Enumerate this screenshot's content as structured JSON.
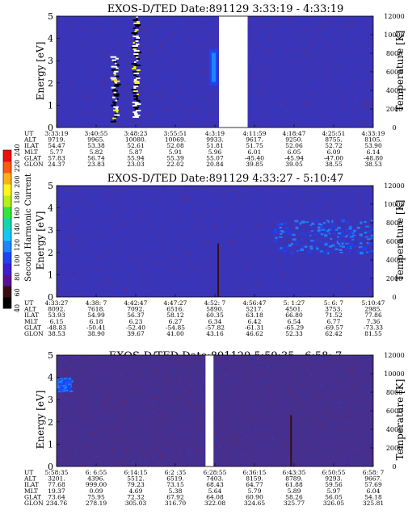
{
  "colorbar": {
    "label": "Second Harmonic Current",
    "ticks": [
      "40",
      "60",
      "80",
      "100",
      "120",
      "140",
      "160",
      "180",
      "200",
      "220",
      "240"
    ],
    "colors": [
      "#000000",
      "#3a0d10",
      "#5a0f9a",
      "#3e1fd0",
      "#1e43f5",
      "#1c85ff",
      "#14c6f5",
      "#12d6b0",
      "#2ee83a",
      "#b6ef1a",
      "#fff51c",
      "#ffb018",
      "#ff5a10",
      "#ee0e0e"
    ]
  },
  "panels": [
    {
      "title": "EXOS-D/TED   Date:891129  3:33:19 - 4:33:19",
      "ylabel": "Energy [eV]",
      "y2label": "Temperature [K]",
      "yticks": [
        "0",
        "1",
        "2",
        "3",
        "4",
        "5"
      ],
      "y2ticks": [
        "0",
        "2000",
        "4000",
        "6000",
        "8000",
        "10000",
        "12000"
      ],
      "data_gaps": [
        {
          "from": "4:04:05",
          "to": "4:09:31"
        }
      ],
      "table": {
        "row_labels": [
          "UT",
          "ALT",
          "ILAT",
          "MLT",
          "GLAT",
          "GLON"
        ],
        "columns": [
          [
            "3:33:19",
            "9719.",
            "54.47",
            "5.77",
            "57.83",
            "24.37"
          ],
          [
            "3:40:55",
            "9965.",
            "53.38",
            "5.82",
            "56.74",
            "23.83"
          ],
          [
            "3:48:23",
            "10080.",
            "52.61",
            "5.87",
            "55.94",
            "23.03"
          ],
          [
            "3:55:51",
            "10069.",
            "52.08",
            "5.91",
            "55.39",
            "22.02"
          ],
          [
            "4:3:19",
            "9933.",
            "51.81",
            "5.96",
            "55.07",
            "20.84"
          ],
          [
            "4:11:59",
            "9617.",
            "51.75",
            "6.01",
            "-45.40",
            "39.85"
          ],
          [
            "4:18:47",
            "9250.",
            "52.06",
            "6.05",
            "-45.94",
            "39.05"
          ],
          [
            "4:25:51",
            "8755.",
            "52.72",
            "6.09",
            "-47.00",
            "38.55"
          ],
          [
            "4:33:19",
            "8105.",
            "53.90",
            "6.14",
            "-48.80",
            "38.53"
          ]
        ]
      }
    },
    {
      "title": "EXOS-D/TED   Date:891129  4:33:27 - 5:10:47",
      "ylabel": "Energy [eV]",
      "y2label": "Temperature [K]",
      "yticks": [
        "0",
        "1",
        "2",
        "3",
        "4",
        "5"
      ],
      "y2ticks": [
        "0",
        "2000",
        "4000",
        "6000",
        "8000",
        "10000",
        "12000"
      ],
      "data_gaps": [],
      "table": {
        "row_labels": [
          "UT",
          "ALT",
          "ILAT",
          "MLT",
          "GLAT",
          "GLON"
        ],
        "columns": [
          [
            "4:33:27",
            "8092.",
            "53.93",
            "6.15",
            "-48.83",
            "38.53"
          ],
          [
            "4:38: 7",
            "7618.",
            "54.99",
            "6.18",
            "-50.41",
            "38.90"
          ],
          [
            "4:42:47",
            "7092.",
            "56.37",
            "6.23",
            "-52.40",
            "39.67"
          ],
          [
            "4:47:27",
            "6516.",
            "58.12",
            "6.27",
            "-54.85",
            "41.00"
          ],
          [
            "4:52: 7",
            "5890.",
            "60.35",
            "6.34",
            "-57.82",
            "43.16"
          ],
          [
            "4:56:47",
            "5217.",
            "63.18",
            "6.42",
            "-61.31",
            "46.62"
          ],
          [
            "5: 1:27",
            "4501.",
            "66.80",
            "6.54",
            "-65.29",
            "52.33"
          ],
          [
            "5: 6: 7",
            "3753.",
            "71.52",
            "6.77",
            "-69.57",
            "62.42"
          ],
          [
            "5:10:47",
            "2985.",
            "77.86",
            "7.36",
            "-73.33",
            "81.55"
          ]
        ]
      }
    },
    {
      "title": "EXOS-D/TED   Date:891129  5:59:35 - 6:58: 7",
      "ylabel": "Energy [eV]",
      "y2label": "Temperature [K]",
      "yticks": [
        "0",
        "1",
        "2",
        "3",
        "4",
        "5"
      ],
      "y2ticks": [
        "0",
        "2000",
        "4000",
        "6000",
        "8000",
        "10000",
        "12000"
      ],
      "data_gaps": [
        {
          "from": "6:26:35",
          "to": "6:28:05"
        }
      ],
      "table": {
        "row_labels": [
          "UT",
          "ALT",
          "ILAT",
          "MLT",
          "GLAT",
          "GLON"
        ],
        "columns": [
          [
            "5:58:35",
            "3201.",
            "77.68",
            "19.37",
            "73.64",
            "234.76"
          ],
          [
            "6: 6:55",
            "4396.",
            "999.00",
            "0.09",
            "75.95",
            "278.19"
          ],
          [
            "6:14:15",
            "5512.",
            "79.23",
            "4.69",
            "72.32",
            "305.03"
          ],
          [
            "6:2 :35",
            "6519.",
            "73.15",
            "5.38",
            "67.92",
            "316.70"
          ],
          [
            "6:28:55",
            "7403.",
            "68.43",
            "5.64",
            "64.08",
            "322.08"
          ],
          [
            "6:36:15",
            "8159.",
            "64.77",
            "5.79",
            "60.90",
            "324.65"
          ],
          [
            "6:43:35",
            "8789.",
            "61.88",
            "5.89",
            "58.26",
            "325.77"
          ],
          [
            "6:50:55",
            "9293.",
            "59.56",
            "5.97",
            "56.05",
            "326.05"
          ],
          [
            "6:58: 7",
            "9667.",
            "57.69",
            "6.04",
            "54.18",
            "325.81"
          ]
        ]
      }
    }
  ],
  "chart_data": [
    {
      "type": "heatmap",
      "title": "EXOS-D/TED   Date:891129  3:33:19 - 4:33:19",
      "xlabel": "",
      "ylabel": "Energy [eV]",
      "y2label": "Temperature [K]",
      "x_ticks": [
        "3:33:19",
        "3:40:55",
        "3:48:23",
        "3:55:51",
        "4:3:19",
        "4:11:59",
        "4:18:47",
        "4:25:51",
        "4:33:19"
      ],
      "ylim": [
        0,
        5
      ],
      "y2lim": [
        0,
        12000
      ],
      "background_color": "#3a35b8",
      "no_data_intervals": [
        [
          "4:04:05",
          "4:09:31"
        ]
      ],
      "features": [
        {
          "time": "3:48:23",
          "energy_range": [
            0.5,
            5.0
          ],
          "intensity_range": [
            40,
            240
          ],
          "description": "spiky high-intensity band"
        },
        {
          "time": "3:44:30",
          "energy_range": [
            0.3,
            3.2
          ],
          "intensity_range": [
            40,
            240
          ]
        },
        {
          "time": "4:03:00",
          "energy_range": [
            1.9,
            3.5
          ],
          "intensity_range": [
            110,
            140
          ]
        }
      ]
    },
    {
      "type": "heatmap",
      "title": "EXOS-D/TED   Date:891129  4:33:27 - 5:10:47",
      "xlabel": "",
      "ylabel": "Energy [eV]",
      "y2label": "Temperature [K]",
      "x_ticks": [
        "4:33:27",
        "4:38: 7",
        "4:42:47",
        "4:47:27",
        "4:52: 7",
        "4:56:47",
        "5: 1:27",
        "5: 6: 7",
        "5:10:47"
      ],
      "ylim": [
        0,
        5
      ],
      "y2lim": [
        0,
        12000
      ],
      "background_color": "#3a35b8",
      "no_data_intervals": [],
      "features": [
        {
          "time": "4:52:30",
          "energy_range": [
            0,
            2.4
          ],
          "intensity_range": [
            40,
            80
          ]
        },
        {
          "time_range": [
            "4:59:00",
            "5:10:47"
          ],
          "energy_range": [
            2.0,
            3.5
          ],
          "intensity_range": [
            100,
            130
          ]
        }
      ]
    },
    {
      "type": "heatmap",
      "title": "EXOS-D/TED   Date:891129  5:59:35 - 6:58: 7",
      "xlabel": "",
      "ylabel": "Energy [eV]",
      "y2label": "Temperature [K]",
      "x_ticks": [
        "5:58:35",
        "6: 6:55",
        "6:14:15",
        "6:2 :35",
        "6:28:55",
        "6:36:15",
        "6:43:35",
        "6:50:55",
        "6:58: 7"
      ],
      "ylim": [
        0,
        5
      ],
      "y2lim": [
        0,
        12000
      ],
      "background_color": "#45308f",
      "no_data_intervals": [
        [
          "6:26:35",
          "6:28:05"
        ]
      ],
      "features": [
        {
          "time_range": [
            "5:58:35",
            "6:01:00"
          ],
          "energy_range": [
            3.4,
            4.0
          ],
          "intensity_range": [
            100,
            120
          ]
        },
        {
          "time": "6:42:40",
          "energy_range": [
            0,
            2.3
          ],
          "intensity_range": [
            40,
            80
          ]
        }
      ]
    }
  ]
}
